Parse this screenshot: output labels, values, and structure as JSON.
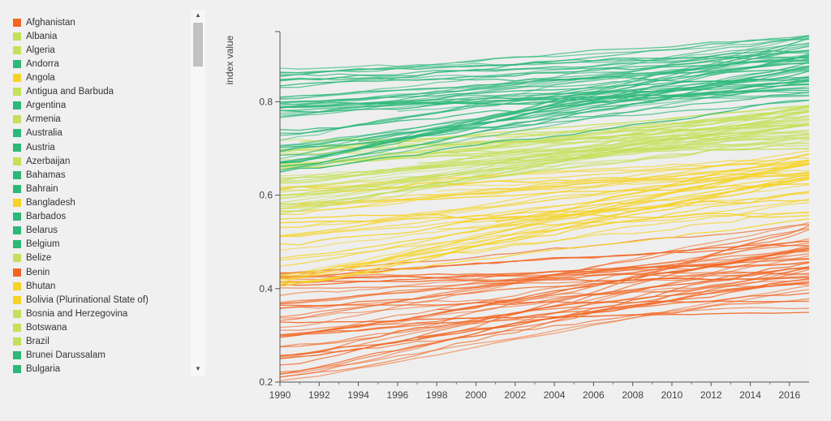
{
  "legend": {
    "items": [
      {
        "label": "Afghanistan",
        "color": "#f26522"
      },
      {
        "label": "Albania",
        "color": "#c5e05a"
      },
      {
        "label": "Algeria",
        "color": "#c5e05a"
      },
      {
        "label": "Andorra",
        "color": "#2db87a"
      },
      {
        "label": "Angola",
        "color": "#f5d327"
      },
      {
        "label": "Antigua and Barbuda",
        "color": "#c5e05a"
      },
      {
        "label": "Argentina",
        "color": "#2db87a"
      },
      {
        "label": "Armenia",
        "color": "#c5e05a"
      },
      {
        "label": "Australia",
        "color": "#2db87a"
      },
      {
        "label": "Austria",
        "color": "#2db87a"
      },
      {
        "label": "Azerbaijan",
        "color": "#c5e05a"
      },
      {
        "label": "Bahamas",
        "color": "#2db87a"
      },
      {
        "label": "Bahrain",
        "color": "#2db87a"
      },
      {
        "label": "Bangladesh",
        "color": "#f5d327"
      },
      {
        "label": "Barbados",
        "color": "#2db87a"
      },
      {
        "label": "Belarus",
        "color": "#2db87a"
      },
      {
        "label": "Belgium",
        "color": "#2db87a"
      },
      {
        "label": "Belize",
        "color": "#c5e05a"
      },
      {
        "label": "Benin",
        "color": "#f26522"
      },
      {
        "label": "Bhutan",
        "color": "#f5d327"
      },
      {
        "label": "Bolivia (Plurinational State of)",
        "color": "#f5d327"
      },
      {
        "label": "Bosnia and Herzegovina",
        "color": "#c5e05a"
      },
      {
        "label": "Botswana",
        "color": "#c5e05a"
      },
      {
        "label": "Brazil",
        "color": "#c5e05a"
      },
      {
        "label": "Brunei Darussalam",
        "color": "#2db87a"
      },
      {
        "label": "Bulgaria",
        "color": "#2db87a"
      }
    ]
  },
  "scrollbar": {
    "up_arrow_icon": "triangle-up",
    "down_arrow_icon": "triangle-down",
    "up_glyph": "▲",
    "down_glyph": "▼"
  },
  "chart_data": {
    "type": "line",
    "ylabel": "index value",
    "xlabel": "",
    "title": "",
    "xlim": [
      1990,
      2017
    ],
    "ylim": [
      0.2,
      0.95
    ],
    "xticks": [
      1990,
      1992,
      1994,
      1996,
      1998,
      2000,
      2002,
      2004,
      2006,
      2008,
      2010,
      2012,
      2014,
      2016
    ],
    "yticks": [
      0.2,
      0.4,
      0.6,
      0.8
    ],
    "ytick_labels": [
      "0.2",
      "0.4",
      "0.6",
      "0.8"
    ],
    "grid": false,
    "colors": {
      "very_high": "#2db87a",
      "high": "#c5e05a",
      "medium": "#f5d327",
      "low": "#f26522"
    },
    "series_ranges": {
      "very_high": {
        "start_1990": [
          0.64,
          0.87
        ],
        "end_2017": [
          0.8,
          0.95
        ]
      },
      "high": {
        "start_1990": [
          0.56,
          0.72
        ],
        "end_2017": [
          0.7,
          0.8
        ]
      },
      "medium": {
        "start_1990": [
          0.4,
          0.62
        ],
        "end_2017": [
          0.55,
          0.7
        ]
      },
      "low": {
        "start_1990": [
          0.2,
          0.44
        ],
        "end_2017": [
          0.35,
          0.55
        ]
      }
    }
  }
}
